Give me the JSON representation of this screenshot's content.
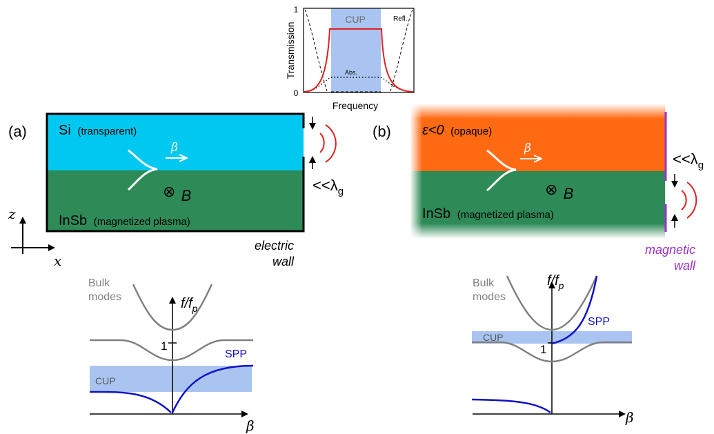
{
  "inset": {
    "ylabel": "Transmission",
    "xlabel": "Frequency",
    "tick_top": "1",
    "tick_bottom": "0",
    "band_label": "CUP",
    "refl_label": "Refl.",
    "abs_label": "Abs."
  },
  "panel_a": {
    "label": "(a)",
    "top_material": "Si",
    "top_note": "(transparent)",
    "bottom_material": "InSb",
    "bottom_note": "(magnetized plasma)",
    "beta": "β",
    "field_symbol": "⊗",
    "field": "B",
    "gap": "<<λ",
    "gap_sub": "g",
    "wall_line1": "electric",
    "wall_line2": "wall"
  },
  "panel_b": {
    "label": "(b)",
    "top_material": "ε<0",
    "top_note": "(opaque)",
    "bottom_material": "InSb",
    "bottom_note": "(magnetized plasma)",
    "beta": "β",
    "field_symbol": "⊗",
    "field": "B",
    "gap": "<<λ",
    "gap_sub": "g",
    "wall_line1": "magnetic",
    "wall_line2": "wall"
  },
  "axes": {
    "z": "z",
    "x": "x"
  },
  "dispersion_a": {
    "ylabel": "f/f",
    "ylabel_sub": "p",
    "xlabel": "β",
    "tick": "1",
    "bulk_line1": "Bulk",
    "bulk_line2": "modes",
    "spp": "SPP",
    "cup": "CUP"
  },
  "dispersion_b": {
    "ylabel": "f/f",
    "ylabel_sub": "p",
    "xlabel": "β",
    "tick": "1",
    "bulk_line1": "Bulk",
    "bulk_line2": "modes",
    "spp": "SPP",
    "cup": "CUP"
  },
  "colors": {
    "si": "#00c8f0",
    "insb": "#2e8b57",
    "opaque": "#ff6a13",
    "cup_band": "#a9c4f0",
    "spp": "#1010c8",
    "bulk": "#808080",
    "transmission": "#e02020",
    "magnetic": "#9b30c8"
  }
}
